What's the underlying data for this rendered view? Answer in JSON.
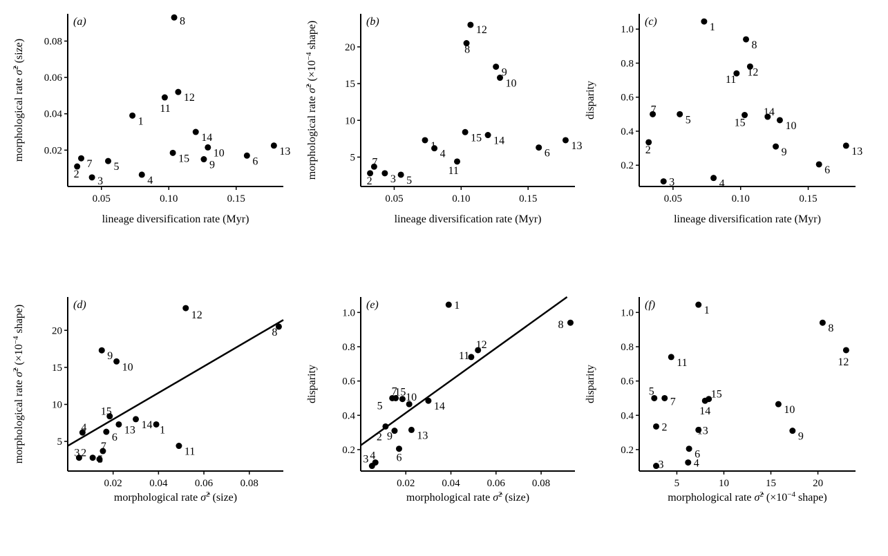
{
  "chart_data": [
    {
      "panel": "(a)",
      "type": "scatter",
      "xlabel": "lineage diversification rate (Myr)",
      "ylabel": "morphological rate σ̂² (size)",
      "xlim": [
        0.025,
        0.185
      ],
      "ylim": [
        0.0,
        0.095
      ],
      "xticks": [
        0.05,
        0.1,
        0.15
      ],
      "xticklabels": [
        "0.05",
        "0.10",
        "0.15"
      ],
      "yticks": [
        0.02,
        0.04,
        0.06,
        0.08
      ],
      "yticklabels": [
        "0.02",
        "0.04",
        "0.06",
        "0.08"
      ],
      "points": [
        {
          "label": "1",
          "x": 0.073,
          "y": 0.039
        },
        {
          "label": "2",
          "x": 0.032,
          "y": 0.011
        },
        {
          "label": "3",
          "x": 0.043,
          "y": 0.005
        },
        {
          "label": "4",
          "x": 0.08,
          "y": 0.0065
        },
        {
          "label": "5",
          "x": 0.055,
          "y": 0.014
        },
        {
          "label": "6",
          "x": 0.158,
          "y": 0.017
        },
        {
          "label": "7",
          "x": 0.035,
          "y": 0.0155
        },
        {
          "label": "8",
          "x": 0.104,
          "y": 0.093
        },
        {
          "label": "9",
          "x": 0.126,
          "y": 0.015
        },
        {
          "label": "10",
          "x": 0.129,
          "y": 0.0215
        },
        {
          "label": "11",
          "x": 0.097,
          "y": 0.049
        },
        {
          "label": "12",
          "x": 0.107,
          "y": 0.052
        },
        {
          "label": "13",
          "x": 0.178,
          "y": 0.0225
        },
        {
          "label": "14",
          "x": 0.12,
          "y": 0.03
        },
        {
          "label": "15",
          "x": 0.103,
          "y": 0.0185
        }
      ]
    },
    {
      "panel": "(b)",
      "type": "scatter",
      "xlabel": "lineage diversification rate (Myr)",
      "ylabel": "morphological rate σ̂² (×10⁻⁴ shape)",
      "xlim": [
        0.025,
        0.185
      ],
      "ylim": [
        1.0,
        24.5
      ],
      "xticks": [
        0.05,
        0.1,
        0.15
      ],
      "xticklabels": [
        "0.05",
        "0.10",
        "0.15"
      ],
      "yticks": [
        5,
        10,
        15,
        20
      ],
      "yticklabels": [
        "5",
        "10",
        "15",
        "20"
      ],
      "points": [
        {
          "label": "1",
          "x": 0.073,
          "y": 7.3
        },
        {
          "label": "2",
          "x": 0.032,
          "y": 2.8
        },
        {
          "label": "3",
          "x": 0.043,
          "y": 2.8
        },
        {
          "label": "4",
          "x": 0.08,
          "y": 6.2
        },
        {
          "label": "5",
          "x": 0.055,
          "y": 2.6
        },
        {
          "label": "6",
          "x": 0.158,
          "y": 6.3
        },
        {
          "label": "7",
          "x": 0.035,
          "y": 3.7
        },
        {
          "label": "8",
          "x": 0.104,
          "y": 20.5
        },
        {
          "label": "9",
          "x": 0.126,
          "y": 17.3
        },
        {
          "label": "10",
          "x": 0.129,
          "y": 15.8
        },
        {
          "label": "11",
          "x": 0.097,
          "y": 4.4
        },
        {
          "label": "12",
          "x": 0.107,
          "y": 23.0
        },
        {
          "label": "13",
          "x": 0.178,
          "y": 7.3
        },
        {
          "label": "14",
          "x": 0.12,
          "y": 8.0
        },
        {
          "label": "15",
          "x": 0.103,
          "y": 8.4
        }
      ]
    },
    {
      "panel": "(c)",
      "type": "scatter",
      "xlabel": "lineage diversification rate (Myr)",
      "ylabel": "disparity",
      "xlim": [
        0.025,
        0.185
      ],
      "ylim": [
        0.075,
        1.09
      ],
      "xticks": [
        0.05,
        0.1,
        0.15
      ],
      "xticklabels": [
        "0.05",
        "0.10",
        "0.15"
      ],
      "yticks": [
        0.2,
        0.4,
        0.6,
        0.8,
        1.0
      ],
      "yticklabels": [
        "0.2",
        "0.4",
        "0.6",
        "0.8",
        "1.0"
      ],
      "points": [
        {
          "label": "1",
          "x": 0.073,
          "y": 1.045
        },
        {
          "label": "2",
          "x": 0.032,
          "y": 0.335
        },
        {
          "label": "3",
          "x": 0.043,
          "y": 0.105
        },
        {
          "label": "4",
          "x": 0.08,
          "y": 0.125
        },
        {
          "label": "5",
          "x": 0.055,
          "y": 0.5
        },
        {
          "label": "6",
          "x": 0.158,
          "y": 0.205
        },
        {
          "label": "7",
          "x": 0.035,
          "y": 0.5
        },
        {
          "label": "8",
          "x": 0.104,
          "y": 0.94
        },
        {
          "label": "9",
          "x": 0.126,
          "y": 0.31
        },
        {
          "label": "10",
          "x": 0.129,
          "y": 0.465
        },
        {
          "label": "11",
          "x": 0.097,
          "y": 0.74
        },
        {
          "label": "12",
          "x": 0.107,
          "y": 0.78
        },
        {
          "label": "13",
          "x": 0.178,
          "y": 0.315
        },
        {
          "label": "14",
          "x": 0.12,
          "y": 0.485
        },
        {
          "label": "15",
          "x": 0.103,
          "y": 0.495
        }
      ]
    },
    {
      "panel": "(d)",
      "type": "scatter",
      "xlabel": "morphological rate σ̂² (size)",
      "ylabel": "morphological rate σ̂² (×10⁻⁴ shape)",
      "xlim": [
        0.0,
        0.095
      ],
      "ylim": [
        1.0,
        24.5
      ],
      "xticks": [
        0.02,
        0.04,
        0.06,
        0.08
      ],
      "xticklabels": [
        "0.02",
        "0.04",
        "0.06",
        "0.08"
      ],
      "yticks": [
        5,
        10,
        15,
        20
      ],
      "yticklabels": [
        "5",
        "10",
        "15",
        "20"
      ],
      "fit_line": {
        "x": [
          0.0,
          0.095
        ],
        "y": [
          4.4,
          21.4
        ]
      },
      "points": [
        {
          "label": "1",
          "x": 0.039,
          "y": 7.3
        },
        {
          "label": "2",
          "x": 0.011,
          "y": 2.8
        },
        {
          "label": "3",
          "x": 0.005,
          "y": 2.8
        },
        {
          "label": "4",
          "x": 0.0065,
          "y": 6.2
        },
        {
          "label": "5",
          "x": 0.014,
          "y": 2.6
        },
        {
          "label": "6",
          "x": 0.017,
          "y": 6.3
        },
        {
          "label": "7",
          "x": 0.0155,
          "y": 3.7
        },
        {
          "label": "8",
          "x": 0.093,
          "y": 20.5
        },
        {
          "label": "9",
          "x": 0.015,
          "y": 17.3
        },
        {
          "label": "10",
          "x": 0.0215,
          "y": 15.8
        },
        {
          "label": "11",
          "x": 0.049,
          "y": 4.4
        },
        {
          "label": "12",
          "x": 0.052,
          "y": 23.0
        },
        {
          "label": "13",
          "x": 0.0225,
          "y": 7.3
        },
        {
          "label": "14",
          "x": 0.03,
          "y": 8.0
        },
        {
          "label": "15",
          "x": 0.0185,
          "y": 8.4
        }
      ]
    },
    {
      "panel": "(e)",
      "type": "scatter",
      "xlabel": "morphological rate σ̂² (size)",
      "ylabel": "disparity",
      "xlim": [
        0.0,
        0.095
      ],
      "ylim": [
        0.075,
        1.09
      ],
      "xticks": [
        0.02,
        0.04,
        0.06,
        0.08
      ],
      "xticklabels": [
        "0.02",
        "0.04",
        "0.06",
        "0.08"
      ],
      "yticks": [
        0.2,
        0.4,
        0.6,
        0.8,
        1.0
      ],
      "yticklabels": [
        "0.2",
        "0.4",
        "0.6",
        "0.8",
        "1.0"
      ],
      "fit_line": {
        "x": [
          0.0,
          0.0915
        ],
        "y": [
          0.225,
          1.09
        ]
      },
      "points": [
        {
          "label": "1",
          "x": 0.039,
          "y": 1.045
        },
        {
          "label": "2",
          "x": 0.011,
          "y": 0.335
        },
        {
          "label": "3",
          "x": 0.005,
          "y": 0.105
        },
        {
          "label": "4",
          "x": 0.0065,
          "y": 0.125
        },
        {
          "label": "5",
          "x": 0.014,
          "y": 0.5
        },
        {
          "label": "6",
          "x": 0.017,
          "y": 0.205
        },
        {
          "label": "7",
          "x": 0.0155,
          "y": 0.5
        },
        {
          "label": "8",
          "x": 0.093,
          "y": 0.94
        },
        {
          "label": "9",
          "x": 0.015,
          "y": 0.31
        },
        {
          "label": "10",
          "x": 0.0215,
          "y": 0.465
        },
        {
          "label": "11",
          "x": 0.049,
          "y": 0.74
        },
        {
          "label": "12",
          "x": 0.052,
          "y": 0.78
        },
        {
          "label": "13",
          "x": 0.0225,
          "y": 0.315
        },
        {
          "label": "14",
          "x": 0.03,
          "y": 0.485
        },
        {
          "label": "15",
          "x": 0.0185,
          "y": 0.495
        }
      ]
    },
    {
      "panel": "(f)",
      "type": "scatter",
      "xlabel": "morphological rate σ̂² (×10⁻⁴ shape)",
      "ylabel": "disparity",
      "xlim": [
        1.0,
        24.0
      ],
      "ylim": [
        0.075,
        1.09
      ],
      "xticks": [
        5,
        10,
        15,
        20
      ],
      "xticklabels": [
        "5",
        "10",
        "15",
        "20"
      ],
      "yticks": [
        0.2,
        0.4,
        0.6,
        0.8,
        1.0
      ],
      "yticklabels": [
        "0.2",
        "0.4",
        "0.6",
        "0.8",
        "1.0"
      ],
      "points": [
        {
          "label": "1",
          "x": 7.3,
          "y": 1.045
        },
        {
          "label": "2",
          "x": 2.8,
          "y": 0.335
        },
        {
          "label": "3",
          "x": 2.8,
          "y": 0.105
        },
        {
          "label": "4",
          "x": 6.2,
          "y": 0.125
        },
        {
          "label": "5",
          "x": 2.6,
          "y": 0.5
        },
        {
          "label": "6",
          "x": 6.3,
          "y": 0.205
        },
        {
          "label": "7",
          "x": 3.7,
          "y": 0.5
        },
        {
          "label": "8",
          "x": 20.5,
          "y": 0.94
        },
        {
          "label": "9",
          "x": 17.3,
          "y": 0.31
        },
        {
          "label": "10",
          "x": 15.8,
          "y": 0.465
        },
        {
          "label": "11",
          "x": 4.4,
          "y": 0.74
        },
        {
          "label": "12",
          "x": 23.0,
          "y": 0.78
        },
        {
          "label": "13",
          "x": 7.3,
          "y": 0.315
        },
        {
          "label": "14",
          "x": 8.0,
          "y": 0.485
        },
        {
          "label": "15",
          "x": 8.4,
          "y": 0.495
        }
      ]
    }
  ]
}
